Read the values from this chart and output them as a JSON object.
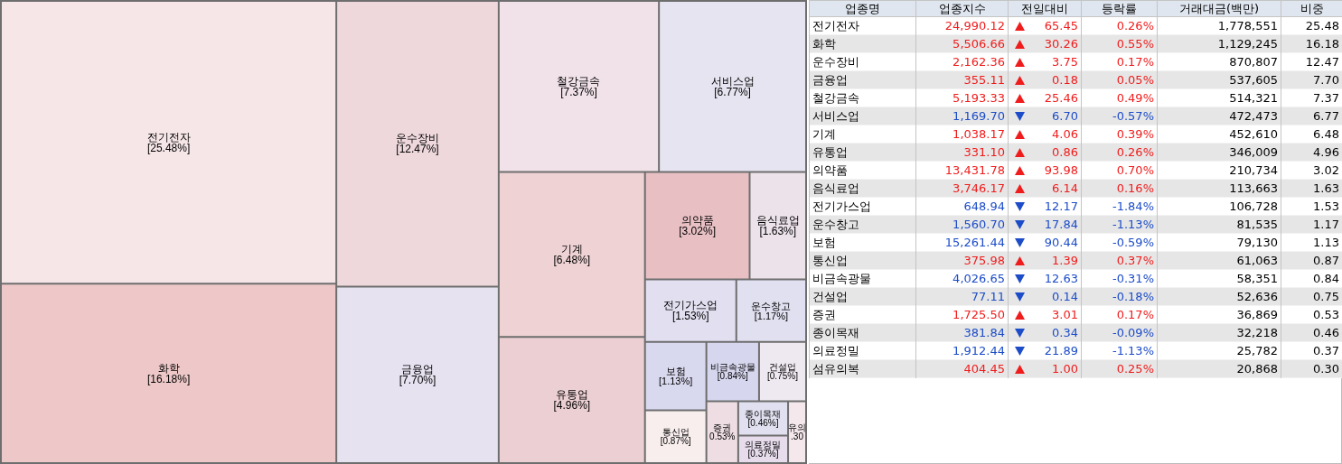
{
  "chart_data": [
    {
      "type": "other",
      "categories": [
        "전기전자",
        "화학",
        "운수장비",
        "금융업",
        "철강금속",
        "서비스업",
        "기계",
        "유통업",
        "의약품",
        "음식료업",
        "전기가스업",
        "운수창고",
        "보험",
        "통신업",
        "비금속광물",
        "건설업",
        "증권",
        "종이목재",
        "의료정밀",
        "유의"
      ],
      "values": [
        25.48,
        16.18,
        12.47,
        7.7,
        7.37,
        6.77,
        6.48,
        4.96,
        3.02,
        1.63,
        1.53,
        1.17,
        1.13,
        0.87,
        0.84,
        0.75,
        0.53,
        0.46,
        0.37,
        0.3
      ],
      "value_labels": [
        "[25.48%]",
        "[16.18%]",
        "[12.47%]",
        "[7.70%]",
        "[7.37%]",
        "[6.77%]",
        "[6.48%]",
        "[4.96%]",
        "[3.02%]",
        "[1.63%]",
        "[1.53%]",
        "[1.17%]",
        "[1.13%]",
        "[0.87%]",
        "[0.84%]",
        "[0.75%]",
        "0.53%",
        "[0.46%]",
        "[0.37%]",
        ".30"
      ],
      "colors": [
        "#f6e6e8",
        "#eec8c8",
        "#eed8dc",
        "#e6e2f0",
        "#f0e2e8",
        "#e6e4f0",
        "#eed2d4",
        "#eccfd2",
        "#e8c0c4",
        "#ece2ea",
        "#e2dff0",
        "#e0e0f0",
        "#d8d8ee",
        "#f8eeee",
        "#d6d6ee",
        "#eee8f0",
        "#eedee4",
        "#e0e0f0",
        "#e6dcec",
        "#f4e8ec"
      ]
    },
    {
      "type": "other",
      "ylabel": "업종명",
      "categories": [
        "전기전자",
        "화학",
        "운수장비",
        "금융업",
        "철강금속",
        "서비스업",
        "기계",
        "유통업",
        "의약품",
        "음식료업",
        "전기가스업",
        "운수창고",
        "보험",
        "통신업",
        "비금속광물",
        "건설업",
        "증권",
        "종이목재",
        "의료정밀",
        "섬유의복"
      ],
      "series": [
        {
          "name": "업종지수",
          "values": [
            24990.12,
            5506.66,
            2162.36,
            355.11,
            5193.33,
            1169.7,
            1038.17,
            331.1,
            13431.78,
            3746.17,
            648.94,
            1560.7,
            15261.44,
            375.98,
            4026.65,
            77.11,
            1725.5,
            381.84,
            1912.44,
            404.45
          ],
          "value_labels": [
            "24,990.12",
            "5,506.66",
            "2,162.36",
            "355.11",
            "5,193.33",
            "1,169.70",
            "1,038.17",
            "331.10",
            "13,431.78",
            "3,746.17",
            "648.94",
            "1,560.70",
            "15,261.44",
            "375.98",
            "4,026.65",
            "77.11",
            "1,725.50",
            "381.84",
            "1,912.44",
            "404.45"
          ],
          "colors": [
            "#f01c1c",
            "#f01c1c",
            "#f01c1c",
            "#f01c1c",
            "#f01c1c",
            "#1c4cc8",
            "#f01c1c",
            "#f01c1c",
            "#f01c1c",
            "#f01c1c",
            "#1c4cc8",
            "#1c4cc8",
            "#1c4cc8",
            "#f01c1c",
            "#1c4cc8",
            "#1c4cc8",
            "#f01c1c",
            "#1c4cc8",
            "#1c4cc8",
            "#f01c1c"
          ]
        },
        {
          "name": "전일대비",
          "values": [
            65.45,
            30.26,
            3.75,
            0.18,
            25.46,
            6.7,
            4.06,
            0.86,
            93.98,
            6.14,
            12.17,
            17.84,
            90.44,
            1.39,
            12.63,
            0.14,
            3.01,
            0.34,
            21.89,
            1.0
          ],
          "value_labels": [
            "65.45",
            "30.26",
            "3.75",
            "0.18",
            "25.46",
            "6.70",
            "4.06",
            "0.86",
            "93.98",
            "6.14",
            "12.17",
            "17.84",
            "90.44",
            "1.39",
            "12.63",
            "0.14",
            "3.01",
            "0.34",
            "21.89",
            "1.00"
          ],
          "colors": [
            "#f01c1c",
            "#f01c1c",
            "#f01c1c",
            "#f01c1c",
            "#f01c1c",
            "#1c4cc8",
            "#f01c1c",
            "#f01c1c",
            "#f01c1c",
            "#f01c1c",
            "#1c4cc8",
            "#1c4cc8",
            "#1c4cc8",
            "#f01c1c",
            "#1c4cc8",
            "#1c4cc8",
            "#f01c1c",
            "#1c4cc8",
            "#1c4cc8",
            "#f01c1c"
          ]
        },
        {
          "name": "등락률",
          "values": [
            0.26,
            0.55,
            0.17,
            0.05,
            0.49,
            -0.57,
            0.39,
            0.26,
            0.7,
            0.16,
            -1.84,
            -1.13,
            -0.59,
            0.37,
            -0.31,
            -0.18,
            0.17,
            -0.09,
            -1.13,
            0.25
          ],
          "value_labels": [
            "0.26%",
            "0.55%",
            "0.17%",
            "0.05%",
            "0.49%",
            "-0.57%",
            "0.39%",
            "0.26%",
            "0.70%",
            "0.16%",
            "-1.84%",
            "-1.13%",
            "-0.59%",
            "0.37%",
            "-0.31%",
            "-0.18%",
            "0.17%",
            "-0.09%",
            "-1.13%",
            "0.25%"
          ],
          "colors": [
            "#f01c1c",
            "#f01c1c",
            "#f01c1c",
            "#f01c1c",
            "#f01c1c",
            "#1c4cc8",
            "#f01c1c",
            "#f01c1c",
            "#f01c1c",
            "#f01c1c",
            "#1c4cc8",
            "#1c4cc8",
            "#1c4cc8",
            "#f01c1c",
            "#1c4cc8",
            "#1c4cc8",
            "#f01c1c",
            "#1c4cc8",
            "#1c4cc8",
            "#f01c1c"
          ]
        },
        {
          "name": "거래대금(백만)",
          "color": "#000000",
          "values": [
            1778551,
            1129245,
            870807,
            537605,
            514321,
            472473,
            452610,
            346009,
            210734,
            113663,
            106728,
            81535,
            79130,
            61063,
            58351,
            52636,
            36869,
            32218,
            25782,
            20868
          ],
          "value_labels": [
            "1,778,551",
            "1,129,245",
            "870,807",
            "537,605",
            "514,321",
            "472,473",
            "452,610",
            "346,009",
            "210,734",
            "113,663",
            "106,728",
            "81,535",
            "79,130",
            "61,063",
            "58,351",
            "52,636",
            "36,869",
            "32,218",
            "25,782",
            "20,868"
          ]
        },
        {
          "name": "비중",
          "color": "#000000",
          "values": [
            25.48,
            16.18,
            12.47,
            7.7,
            7.37,
            6.77,
            6.48,
            4.96,
            3.02,
            1.63,
            1.53,
            1.17,
            1.13,
            0.87,
            0.84,
            0.75,
            0.53,
            0.46,
            0.37,
            0.3
          ],
          "value_labels": [
            "25.48",
            "16.18",
            "12.47",
            "7.70",
            "7.37",
            "6.77",
            "6.48",
            "4.96",
            "3.02",
            "1.63",
            "1.53",
            "1.17",
            "1.13",
            "0.87",
            "0.84",
            "0.75",
            "0.53",
            "0.46",
            "0.37",
            "0.30"
          ]
        }
      ]
    }
  ]
}
